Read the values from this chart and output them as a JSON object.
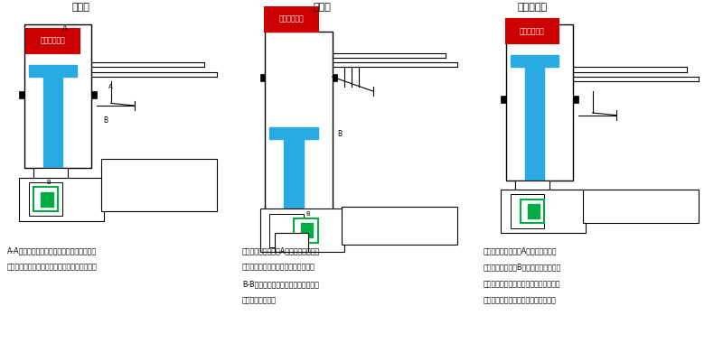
{
  "title1": "待機中",
  "title2": "発射時",
  "title3": "リターン時",
  "label_head": "ヘッドバルブ",
  "label_A": "A",
  "label_B": "B",
  "caption1_l1": "A-A間は細いパイプでつながっているため、",
  "caption1_l2": "ヘッドバルブがメインピストンの蓋をしている",
  "caption2_l1": "トリガが引かれるとAのエアが遮断され",
  "caption2_l2": "ヘッドバルブが上がり釘を発射する。",
  "caption2_l3": "B-B間が繋がっているため送りピスト",
  "caption2_l4": "ンがバックする。",
  "caption3_l1": "トリガが戻ると再びAにエアが入り、",
  "caption3_l2": "打ち込みを中止。Bのエアがメインピス",
  "caption3_l3": "トンを押し上げる。送りピストンは後ろ",
  "caption3_l4": "のバネで戻るため、それで釘を送る。",
  "red": "#cc0000",
  "blue": "#29abe2",
  "green": "#00aa44",
  "black": "#000000",
  "white": "#ffffff",
  "bg": "#ffffff"
}
